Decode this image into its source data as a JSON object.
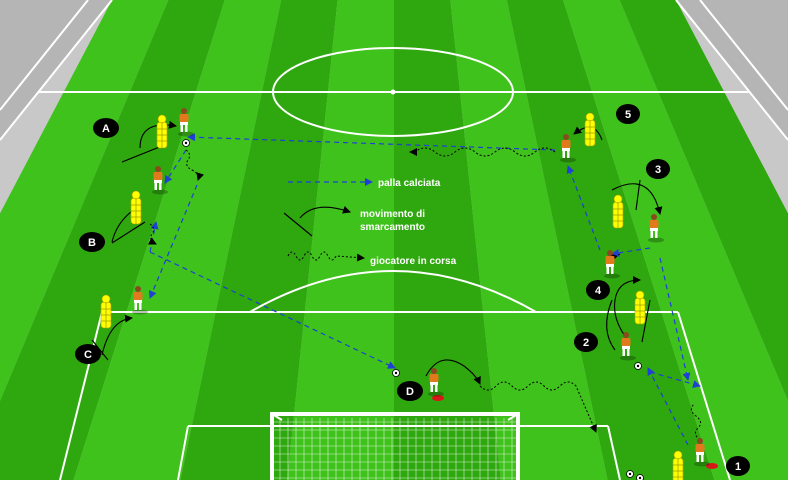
{
  "legend": {
    "kicked_ball": "palla calciata",
    "movement_line1": "movimento di",
    "movement_line2": "smarcamento",
    "running_player": "giocatore in corsa"
  },
  "stations_left": [
    "A",
    "B",
    "C",
    "D"
  ],
  "stations_right": [
    "1",
    "2",
    "3",
    "4",
    "5"
  ],
  "colors": {
    "pitch_light": "#3fc21b",
    "pitch_dark": "#2fa80f",
    "outfield": "#c8c8c8",
    "pass_arrow": "#1f3fd6",
    "mannequin": "#ffff00",
    "player_shirt": "#e07a1c",
    "cone": "#d81818",
    "label_disc": "#000000"
  }
}
